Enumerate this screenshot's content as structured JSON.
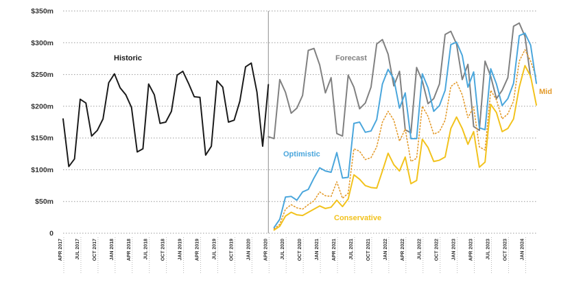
{
  "chart_data": {
    "type": "line",
    "title": "",
    "xlabel": "",
    "ylabel": "",
    "ylim": [
      0,
      350
    ],
    "y_ticks": [
      {
        "value": 0,
        "label": "0"
      },
      {
        "value": 50,
        "label": "$50m"
      },
      {
        "value": 100,
        "label": "$100m"
      },
      {
        "value": 150,
        "label": "$150m"
      },
      {
        "value": 200,
        "label": "$200m"
      },
      {
        "value": 250,
        "label": "$250m"
      },
      {
        "value": 300,
        "label": "$300m"
      },
      {
        "value": 350,
        "label": "$350m"
      }
    ],
    "grid": true,
    "x_range": [
      "2017-04",
      "2024-03"
    ],
    "x_tick_labels": [
      "APR 2017",
      "JUL 2017",
      "OCT 2017",
      "JAN 2018",
      "APR 2018",
      "JUL 2018",
      "OCT 2018",
      "JAN 2019",
      "APR 2019",
      "JUL 2019",
      "OCT 2019",
      "JAN 2020",
      "APR 2020",
      "JUL 2020",
      "OCT 2020",
      "JAN 2021",
      "APR 2021",
      "JUL 2021",
      "OCT 2021",
      "JAN 2022",
      "APR 2022",
      "JUL 2022",
      "OCT 2022",
      "JAN 2023",
      "APR 2023",
      "JUL 2023",
      "OCT 2023",
      "JAN 2024"
    ],
    "forecast_start": "2020-04",
    "period_labels": {
      "historic": "Historic",
      "forecast": "Forecast"
    },
    "series": [
      {
        "name": "Historic",
        "color": "#1a1a1a",
        "style": "solid",
        "label_visible": false,
        "start": "2017-04",
        "values": [
          180,
          105,
          117,
          211,
          205,
          153,
          162,
          180,
          237,
          251,
          229,
          218,
          198,
          128,
          133,
          235,
          218,
          173,
          175,
          192,
          249,
          255,
          236,
          215,
          214,
          123,
          137,
          240,
          230,
          175,
          178,
          208,
          262,
          268,
          222,
          137,
          234
        ]
      },
      {
        "name": "Forecast",
        "color": "#808080",
        "style": "solid",
        "label_visible": false,
        "start": "2020-04",
        "values": [
          152,
          149,
          242,
          222,
          189,
          197,
          217,
          288,
          291,
          265,
          221,
          245,
          157,
          153,
          249,
          230,
          196,
          205,
          230,
          298,
          305,
          282,
          232,
          255,
          163,
          158,
          261,
          240,
          204,
          212,
          235,
          313,
          318,
          298,
          242,
          266,
          168,
          162,
          271,
          247,
          212,
          225,
          245,
          326,
          331,
          310,
          245
        ]
      },
      {
        "name": "Optimistic",
        "color": "#4aa6dc",
        "style": "solid",
        "label_visible": true,
        "start": "2020-05",
        "values": [
          9,
          22,
          57,
          58,
          52,
          65,
          69,
          87,
          103,
          98,
          96,
          127,
          87,
          88,
          173,
          175,
          159,
          161,
          179,
          235,
          258,
          243,
          197,
          221,
          149,
          149,
          251,
          229,
          192,
          201,
          225,
          297,
          301,
          280,
          230,
          254,
          166,
          163,
          259,
          235,
          201,
          212,
          236,
          311,
          315,
          296,
          236
        ]
      },
      {
        "name": "Mid",
        "color": "#e39a2a",
        "style": "dotted",
        "label_visible": true,
        "start": "2020-05",
        "values": [
          7,
          14,
          38,
          45,
          40,
          38,
          45,
          51,
          65,
          59,
          58,
          81,
          55,
          63,
          133,
          129,
          116,
          119,
          136,
          175,
          192,
          178,
          145,
          164,
          113,
          118,
          200,
          184,
          156,
          160,
          178,
          231,
          238,
          218,
          182,
          199,
          136,
          131,
          225,
          210,
          180,
          188,
          208,
          271,
          289,
          271,
          245
        ]
      },
      {
        "name": "Conservative",
        "color": "#f2c21c",
        "style": "solid",
        "label_visible": true,
        "start": "2020-05",
        "values": [
          5,
          11,
          27,
          33,
          29,
          28,
          33,
          38,
          43,
          39,
          41,
          52,
          42,
          54,
          92,
          85,
          75,
          72,
          71,
          98,
          126,
          108,
          98,
          120,
          78,
          83,
          148,
          135,
          113,
          115,
          120,
          165,
          183,
          165,
          140,
          160,
          104,
          112,
          203,
          190,
          160,
          165,
          180,
          230,
          264,
          247,
          202
        ]
      }
    ]
  }
}
